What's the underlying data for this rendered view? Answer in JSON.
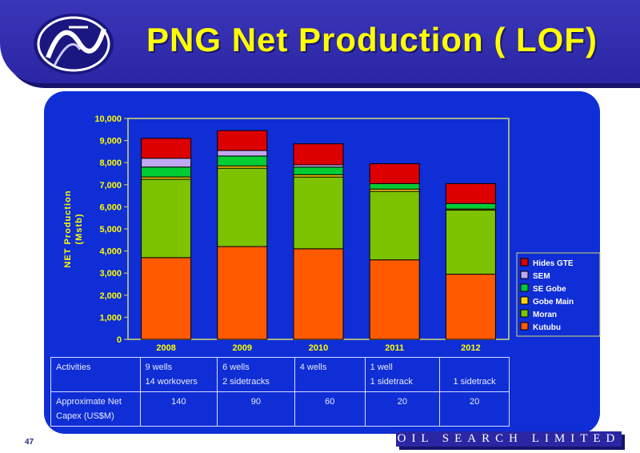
{
  "header": {
    "title": "PNG Net Production ( LOF)"
  },
  "footer": {
    "page": "47",
    "brand": "OIL SEARCH LIMITED"
  },
  "colors": {
    "Kutubu": "#ff5a00",
    "Moran": "#7cc200",
    "Gobe Main": "#ffd200",
    "SE Gobe": "#00cc33",
    "SEM": "#c0a8f0",
    "Hides GTE": "#dd0000",
    "background": "#0f2ed6",
    "axis_text": "#ffff00"
  },
  "chart_data": {
    "type": "bar",
    "stacked": true,
    "categories": [
      "2008",
      "2009",
      "2010",
      "2011",
      "2012"
    ],
    "ylabel": "NET Production\n(Mstb)",
    "ylim": [
      0,
      10000
    ],
    "yticks": [
      "0",
      "1,000",
      "2,000",
      "3,000",
      "4,000",
      "5,000",
      "6,000",
      "7,000",
      "8,000",
      "9,000",
      "10,000"
    ],
    "legend_position": "right",
    "series": [
      {
        "name": "Kutubu",
        "values": [
          3700,
          4200,
          4100,
          3600,
          2950
        ]
      },
      {
        "name": "Moran",
        "values": [
          3550,
          3550,
          3250,
          3100,
          2900
        ]
      },
      {
        "name": "Gobe Main",
        "values": [
          100,
          100,
          100,
          100,
          50
        ]
      },
      {
        "name": "SE Gobe",
        "values": [
          450,
          450,
          350,
          250,
          250
        ]
      },
      {
        "name": "SEM",
        "values": [
          400,
          250,
          100,
          0,
          0
        ]
      },
      {
        "name": "Hides GTE",
        "values": [
          900,
          900,
          950,
          900,
          900
        ]
      }
    ]
  },
  "table": {
    "rows": [
      {
        "label": "Activities",
        "cells": [
          "9 wells\n14 workovers",
          "6 wells\n2 sidetracks",
          "4 wells",
          "1 well\n1 sidetrack",
          "\n1 sidetrack"
        ]
      },
      {
        "label": "Approximate Net Capex (US$M)",
        "cells": [
          "140",
          "90",
          "60",
          "20",
          "20"
        ]
      }
    ]
  }
}
